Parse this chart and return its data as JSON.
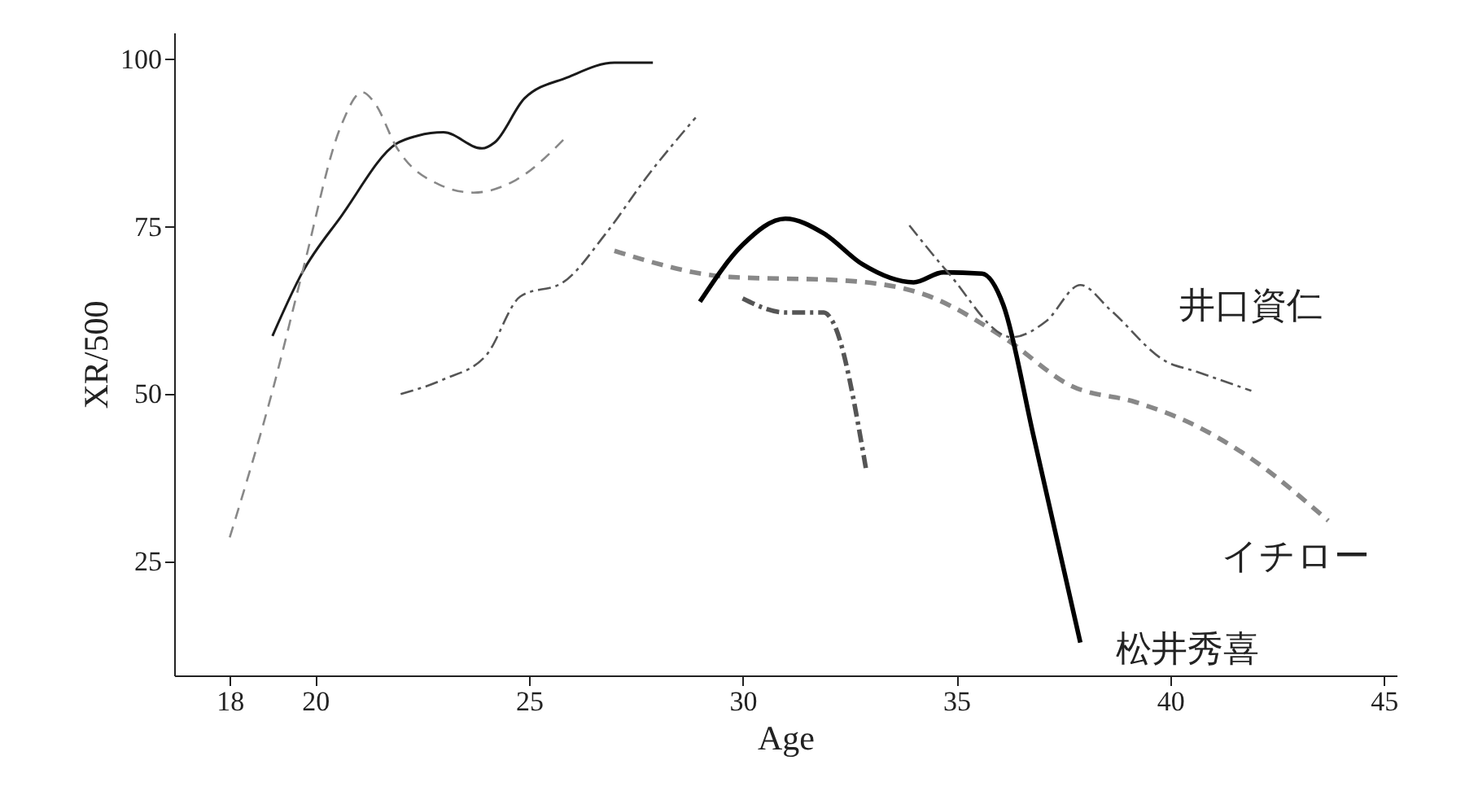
{
  "chart_data": {
    "type": "line",
    "xlabel": "Age",
    "ylabel": "XR/500",
    "xlim": [
      16.7,
      45.3
    ],
    "xticks": [
      18,
      20,
      25,
      30,
      35,
      40,
      45
    ],
    "ylim": [
      8,
      104
    ],
    "yticks": [
      25,
      50,
      75,
      100
    ],
    "grid": false,
    "marker": "none",
    "series": [
      {
        "color": "#1a1a1a",
        "line_style": "solid",
        "x": [
          19.0,
          19.7,
          20.6,
          21.9,
          22.4,
          23.0,
          23.9,
          24.2,
          24.9,
          25.9,
          27.0,
          27.9
        ],
        "values": [
          58.7,
          68.2,
          76.5,
          87.4,
          88.6,
          89.1,
          86.7,
          87.6,
          94.2,
          97.3,
          99.5,
          99.5
        ]
      },
      {
        "color": "#888888",
        "line_style": "dashed",
        "x": [
          18.0,
          19.0,
          19.7,
          20.6,
          21.1,
          21.4,
          21.9,
          22.9,
          23.7,
          24.7,
          25.9
        ],
        "values": [
          28.6,
          50.5,
          68.2,
          90,
          95.1,
          93.4,
          86.9,
          81.3,
          80.1,
          82,
          88.6
        ]
      },
      {
        "color": "#555555",
        "line_style": "dashdot",
        "x": [
          22.0,
          23.0,
          24.0,
          24.8,
          25.8,
          26.8,
          27.8,
          28.9
        ],
        "values": [
          50.0,
          52.2,
          55.8,
          64.6,
          66.7,
          74,
          82.8,
          91.3
        ]
      },
      {
        "name": "イチロー",
        "color": "#888888",
        "line_style": "dashed",
        "x": [
          27.0,
          29.7,
          32.3,
          34.2,
          36.1,
          37.7,
          39.2,
          40.5,
          41.8,
          43.7
        ],
        "values": [
          71.4,
          67.5,
          67.0,
          65,
          58.5,
          51.2,
          48.8,
          45.6,
          40.8,
          31.1
        ]
      },
      {
        "name": "松井秀喜",
        "color": "#000000",
        "line_style": "solid",
        "x": [
          29.0,
          30.0,
          31.0,
          31.9,
          32.8,
          34.0,
          34.7,
          35.6,
          36.1,
          36.8,
          37.9
        ],
        "values": [
          63.8,
          72.3,
          76.2,
          74.0,
          69.4,
          66.7,
          68.2,
          68.0,
          63.3,
          43.9,
          12.9
        ]
      },
      {
        "color": "#555555",
        "line_style": "dashdot",
        "x": [
          30.0,
          31.0,
          31.9,
          32.1,
          32.9
        ],
        "values": [
          64.3,
          62.2,
          62.2,
          60.9,
          38.3
        ]
      },
      {
        "name": "井口資仁",
        "color": "#555555",
        "line_style": "dashdot",
        "x": [
          33.9,
          34.8,
          36.3,
          37.1,
          37.9,
          38.6,
          39.9,
          40.6,
          41.9
        ],
        "values": [
          75.2,
          68.2,
          58.5,
          60.9,
          66.3,
          62.6,
          54.9,
          53.4,
          50.5
        ]
      }
    ]
  }
}
